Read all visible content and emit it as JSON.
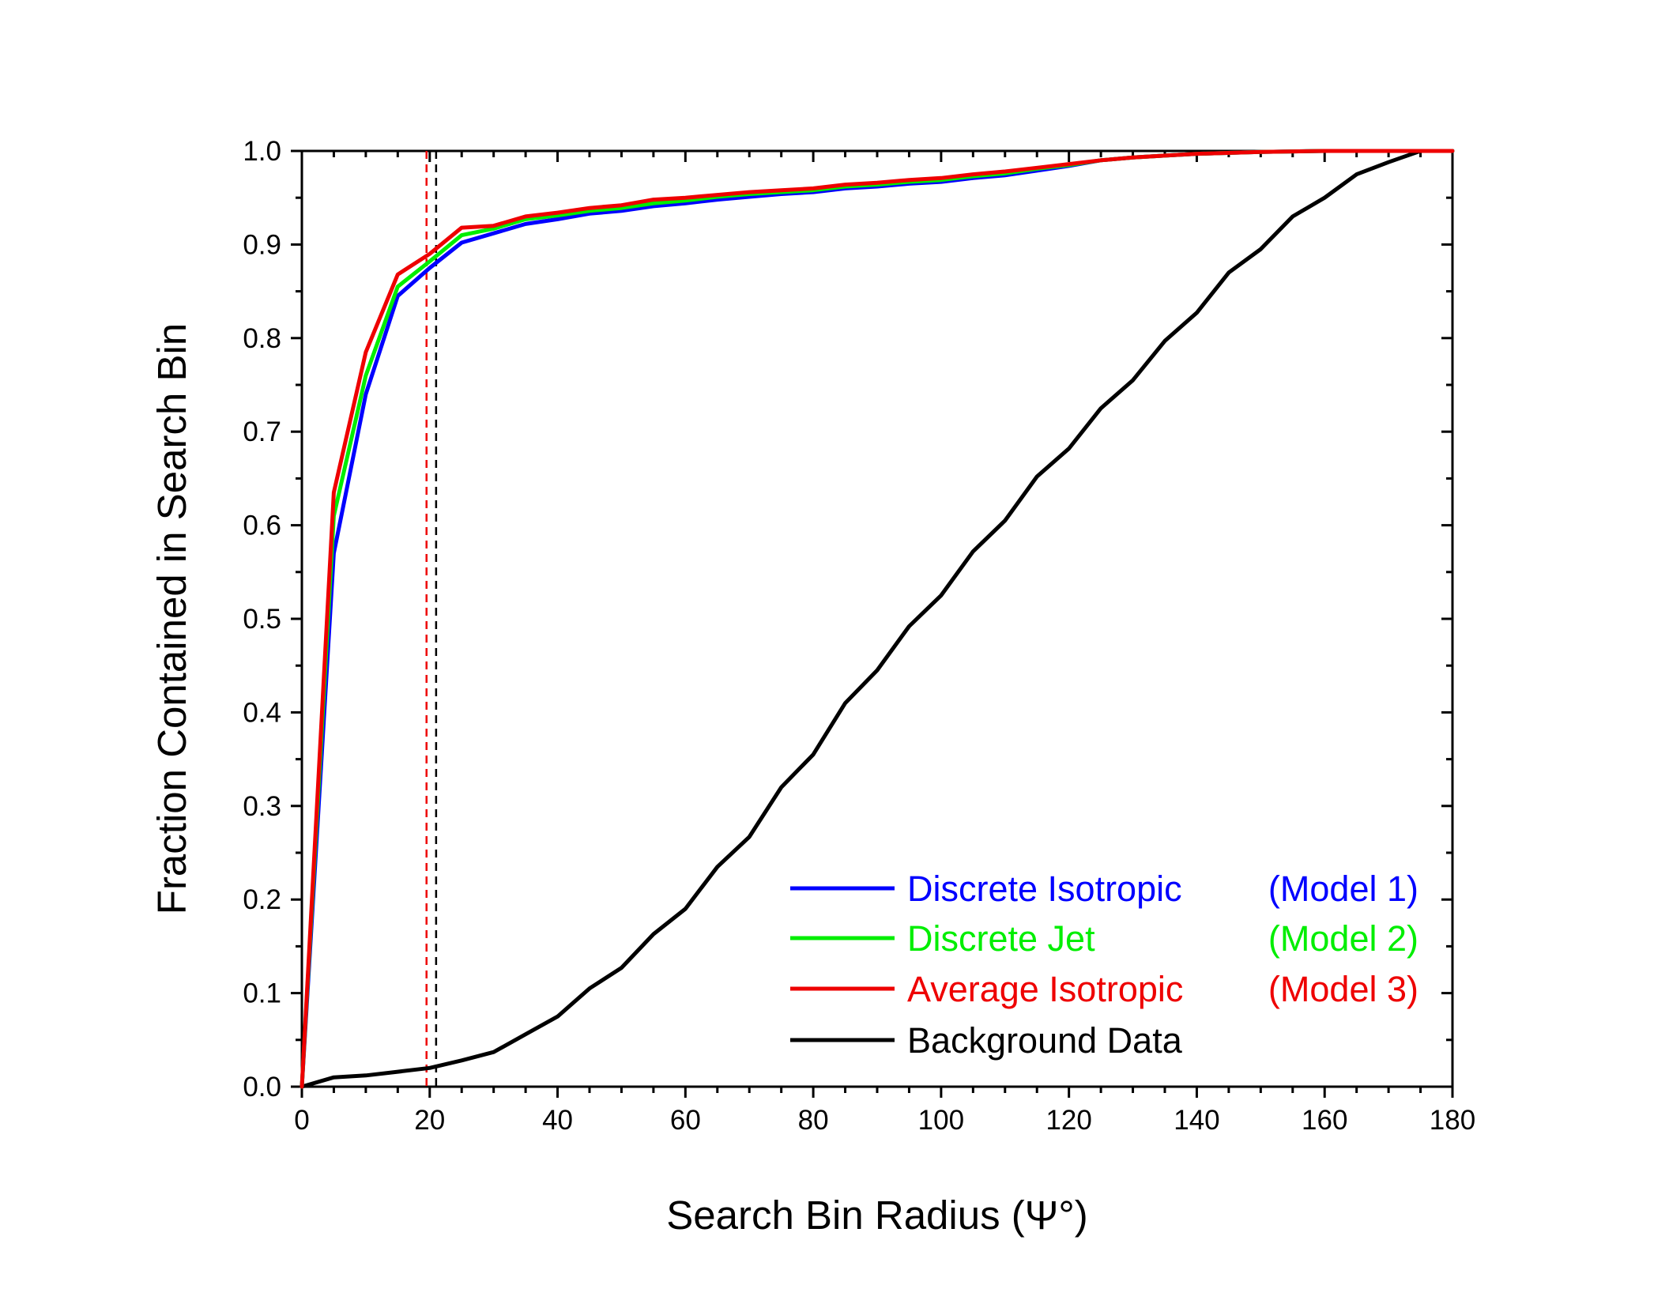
{
  "chart_data": {
    "type": "line",
    "xlabel": "Search Bin Radius (Ψ°)",
    "ylabel": "Fraction Contained in Search Bin",
    "xlim": [
      0,
      180
    ],
    "ylim": [
      0,
      1.0
    ],
    "x_ticks": [
      "0",
      "20",
      "40",
      "60",
      "80",
      "100",
      "120",
      "140",
      "160",
      "180"
    ],
    "y_ticks": [
      "0.0",
      "0.1",
      "0.2",
      "0.3",
      "0.4",
      "0.5",
      "0.6",
      "0.7",
      "0.8",
      "0.9",
      "1.0"
    ],
    "grid": false,
    "legend_position": "bottom-right",
    "series": [
      {
        "name": "Discrete Isotropic",
        "model": "(Model 1)",
        "color": "#0000ff",
        "x": [
          0,
          5,
          10,
          15,
          20,
          25,
          30,
          35,
          40,
          45,
          50,
          55,
          60,
          65,
          70,
          75,
          80,
          85,
          90,
          95,
          100,
          105,
          110,
          115,
          120,
          125,
          130,
          135,
          140,
          150,
          160,
          170,
          180
        ],
        "y": [
          0.0,
          0.57,
          0.74,
          0.845,
          0.875,
          0.902,
          0.912,
          0.922,
          0.927,
          0.933,
          0.936,
          0.941,
          0.944,
          0.948,
          0.951,
          0.954,
          0.956,
          0.96,
          0.962,
          0.965,
          0.967,
          0.971,
          0.974,
          0.979,
          0.984,
          0.99,
          0.993,
          0.995,
          0.997,
          0.999,
          1.0,
          1.0,
          1.0
        ]
      },
      {
        "name": "Discrete Jet",
        "model": "(Model 2)",
        "color": "#00ee00",
        "x": [
          0,
          5,
          10,
          15,
          20,
          25,
          30,
          35,
          40,
          45,
          50,
          55,
          60,
          65,
          70,
          75,
          80,
          85,
          90,
          95,
          100,
          105,
          110,
          115,
          120,
          125,
          130,
          135,
          140,
          150,
          160,
          170,
          180
        ],
        "y": [
          0.0,
          0.61,
          0.76,
          0.855,
          0.882,
          0.91,
          0.917,
          0.927,
          0.931,
          0.936,
          0.939,
          0.944,
          0.947,
          0.951,
          0.954,
          0.956,
          0.958,
          0.962,
          0.964,
          0.967,
          0.969,
          0.973,
          0.976,
          0.981,
          0.985,
          0.99,
          0.993,
          0.995,
          0.997,
          0.999,
          1.0,
          1.0,
          1.0
        ]
      },
      {
        "name": "Average Isotropic",
        "model": "(Model 3)",
        "color": "#ee0000",
        "x": [
          0,
          5,
          10,
          15,
          20,
          25,
          30,
          35,
          40,
          45,
          50,
          55,
          60,
          65,
          70,
          75,
          80,
          85,
          90,
          95,
          100,
          105,
          110,
          115,
          120,
          125,
          130,
          135,
          140,
          150,
          160,
          170,
          180
        ],
        "y": [
          0.0,
          0.635,
          0.785,
          0.868,
          0.89,
          0.918,
          0.92,
          0.93,
          0.934,
          0.939,
          0.942,
          0.948,
          0.95,
          0.953,
          0.956,
          0.958,
          0.96,
          0.964,
          0.966,
          0.969,
          0.971,
          0.975,
          0.978,
          0.982,
          0.986,
          0.99,
          0.993,
          0.995,
          0.997,
          0.999,
          1.0,
          1.0,
          1.0
        ]
      },
      {
        "name": "Background Data",
        "model": "",
        "color": "#000000",
        "x": [
          0,
          5,
          10,
          15,
          20,
          25,
          30,
          35,
          40,
          45,
          50,
          55,
          60,
          65,
          70,
          75,
          80,
          85,
          90,
          95,
          100,
          105,
          110,
          115,
          120,
          125,
          130,
          135,
          140,
          145,
          150,
          155,
          160,
          165,
          170,
          175,
          180
        ],
        "y": [
          0.0,
          0.01,
          0.012,
          0.016,
          0.02,
          0.028,
          0.037,
          0.056,
          0.075,
          0.105,
          0.127,
          0.163,
          0.19,
          0.235,
          0.267,
          0.32,
          0.355,
          0.41,
          0.445,
          0.492,
          0.525,
          0.572,
          0.605,
          0.652,
          0.682,
          0.725,
          0.755,
          0.797,
          0.827,
          0.87,
          0.895,
          0.93,
          0.95,
          0.975,
          0.988,
          1.0,
          1.0
        ]
      }
    ],
    "reference_lines": [
      {
        "x": 19.5,
        "color": "#ee0000",
        "style": "dashed"
      },
      {
        "x": 21.0,
        "color": "#000000",
        "style": "dashed"
      }
    ]
  }
}
